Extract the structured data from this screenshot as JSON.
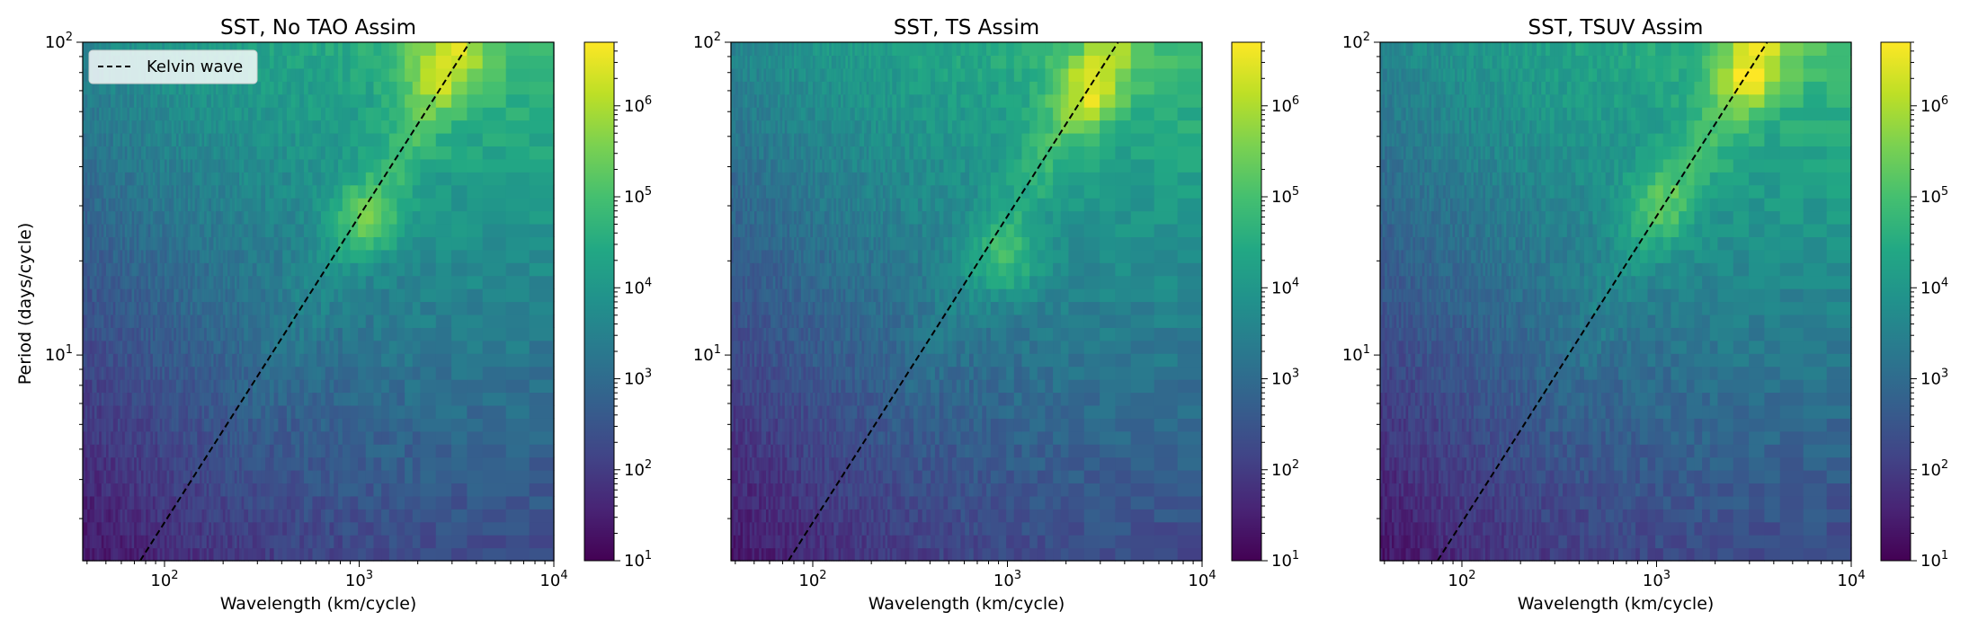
{
  "chart_data": [
    {
      "type": "heatmap",
      "title": "SST, No TAO Assim",
      "xlabel": "Wavelength (km/cycle)",
      "ylabel": "Period (days/cycle)",
      "x_scale": "log",
      "y_scale": "log",
      "xlim": [
        38,
        10000
      ],
      "ylim": [
        2.2,
        100
      ],
      "x_ticks": [
        "10^2",
        "10^3",
        "10^4"
      ],
      "y_ticks": [
        "10^1",
        "10^2"
      ],
      "colorbar": {
        "scale": "log",
        "range": [
          10,
          5000000
        ],
        "ticks": [
          "10^1",
          "10^2",
          "10^3",
          "10^4",
          "10^5",
          "10^6"
        ],
        "colormap": "viridis"
      },
      "legend": {
        "entries": [
          "Kelvin wave"
        ],
        "position": "top-left"
      },
      "kelvin_wave_line": {
        "x": [
          75,
          3700
        ],
        "y": [
          2.2,
          100
        ],
        "style": "dashed",
        "color": "#000000"
      },
      "peak": {
        "wavelength": 1100,
        "period": 27,
        "value": 5000000
      },
      "secondary_peaks": [
        {
          "wavelength": 2500,
          "period": 85,
          "value": 4000000
        }
      ]
    },
    {
      "type": "heatmap",
      "title": "SST, TS Assim",
      "xlabel": "Wavelength (km/cycle)",
      "ylabel": "",
      "x_scale": "log",
      "y_scale": "log",
      "xlim": [
        38,
        10000
      ],
      "ylim": [
        2.2,
        100
      ],
      "x_ticks": [
        "10^2",
        "10^3",
        "10^4"
      ],
      "y_ticks": [
        "10^1",
        "10^2"
      ],
      "colorbar": {
        "scale": "log",
        "range": [
          10,
          5000000
        ],
        "ticks": [
          "10^1",
          "10^2",
          "10^3",
          "10^4",
          "10^5",
          "10^6"
        ],
        "colormap": "viridis"
      },
      "kelvin_wave_line": {
        "x": [
          75,
          3700
        ],
        "y": [
          2.2,
          100
        ],
        "style": "dashed",
        "color": "#000000"
      },
      "peak": {
        "wavelength": 2600,
        "period": 70,
        "value": 5000000
      },
      "secondary_peaks": [
        {
          "wavelength": 1000,
          "period": 20,
          "value": 3500000
        }
      ]
    },
    {
      "type": "heatmap",
      "title": "SST, TSUV Assim",
      "xlabel": "Wavelength (km/cycle)",
      "ylabel": "",
      "x_scale": "log",
      "y_scale": "log",
      "xlim": [
        38,
        10000
      ],
      "ylim": [
        2.2,
        100
      ],
      "x_ticks": [
        "10^2",
        "10^3",
        "10^4"
      ],
      "y_ticks": [
        "10^1",
        "10^2"
      ],
      "colorbar": {
        "scale": "log",
        "range": [
          10,
          5000000
        ],
        "ticks": [
          "10^1",
          "10^2",
          "10^3",
          "10^4",
          "10^5",
          "10^6"
        ],
        "colormap": "viridis"
      },
      "kelvin_wave_line": {
        "x": [
          75,
          3700
        ],
        "y": [
          2.2,
          100
        ],
        "style": "dashed",
        "color": "#000000"
      },
      "peak": {
        "wavelength": 3000,
        "period": 80,
        "value": 5000000
      },
      "secondary_peaks": [
        {
          "wavelength": 1000,
          "period": 30,
          "value": 3500000
        }
      ]
    }
  ]
}
